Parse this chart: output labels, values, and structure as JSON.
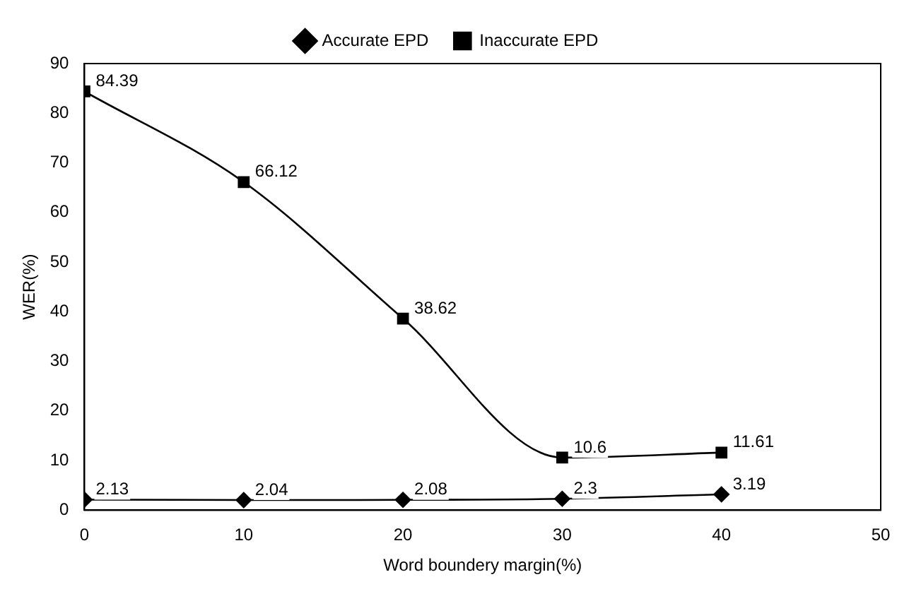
{
  "chart_data": {
    "type": "line",
    "xlabel": "Word boundery margin(%)",
    "ylabel": "WER(%)",
    "x": [
      0,
      10,
      20,
      30,
      40
    ],
    "series": [
      {
        "name": "Accurate EPD",
        "color": "#000000",
        "marker": "diamond",
        "values": [
          2.13,
          2.04,
          2.08,
          2.3,
          3.19
        ]
      },
      {
        "name": "Inaccurate EPD",
        "color": "#000000",
        "marker": "square",
        "values": [
          84.39,
          66.12,
          38.62,
          10.6,
          11.61
        ]
      }
    ],
    "xlim": [
      0,
      50
    ],
    "xticks": [
      0,
      10,
      20,
      30,
      40,
      50
    ],
    "ylim": [
      0,
      90
    ],
    "yticks": [
      0,
      10,
      20,
      30,
      40,
      50,
      60,
      70,
      80,
      90
    ],
    "grid": false,
    "legend": "top",
    "data_labels": true,
    "line_style": "solid"
  }
}
